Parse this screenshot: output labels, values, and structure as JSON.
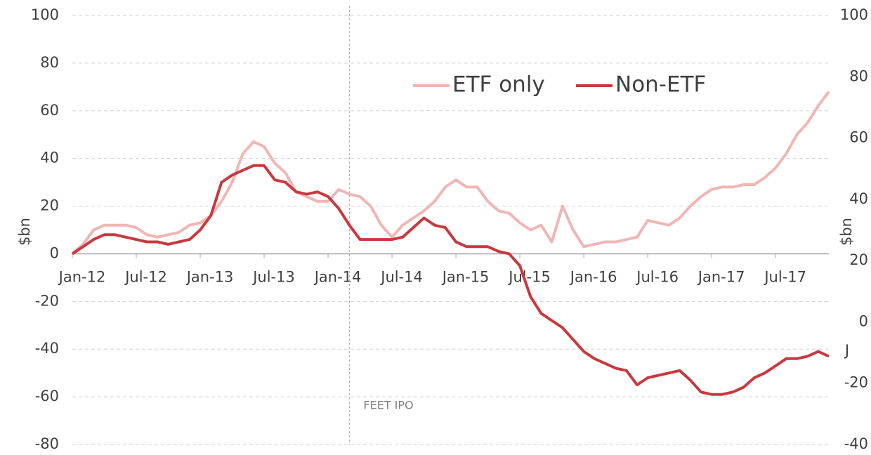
{
  "chart_data": {
    "type": "line",
    "categories": [
      "Jan-12",
      null,
      null,
      null,
      null,
      null,
      "Jul-12",
      null,
      null,
      null,
      null,
      null,
      "Jan-13",
      null,
      null,
      null,
      null,
      null,
      "Jul-13",
      null,
      null,
      null,
      null,
      null,
      "Jan-14",
      null,
      null,
      null,
      null,
      null,
      "Jul-14",
      null,
      null,
      null,
      null,
      null,
      "Jan-15",
      null,
      null,
      null,
      null,
      null,
      "Jul-15",
      null,
      null,
      null,
      null,
      null,
      "Jan-16",
      null,
      null,
      null,
      null,
      null,
      "Jul-16",
      null,
      null,
      null,
      null,
      null,
      "Jan-17",
      null,
      null,
      null,
      null,
      null,
      "Jul-17",
      null,
      null,
      null,
      null,
      null
    ],
    "series": [
      {
        "name": "ETF only",
        "color": "#f0b6b4",
        "values": [
          0,
          4,
          10,
          12,
          12,
          12,
          11,
          8,
          7,
          8,
          9,
          12,
          13,
          16,
          22,
          30,
          42,
          47,
          45,
          38,
          34,
          26,
          24,
          22,
          22,
          27,
          25,
          24,
          20,
          12,
          7,
          12,
          15,
          18,
          22,
          28,
          31,
          28,
          28,
          22,
          18,
          17,
          13,
          10,
          12,
          5,
          20,
          10,
          3,
          4,
          5,
          5,
          6,
          7,
          14,
          13,
          12,
          15,
          20,
          24,
          27,
          28,
          28,
          29,
          29,
          32,
          36,
          42,
          50,
          55,
          62,
          68
        ]
      },
      {
        "name": "Non-ETF",
        "color": "#c8393f",
        "values": [
          0,
          3,
          6,
          8,
          8,
          7,
          6,
          5,
          5,
          4,
          5,
          6,
          10,
          16,
          30,
          33,
          35,
          37,
          37,
          31,
          30,
          26,
          25,
          26,
          24,
          19,
          12,
          6,
          6,
          6,
          6,
          7,
          11,
          15,
          12,
          11,
          5,
          3,
          3,
          3,
          1,
          0,
          -5,
          -18,
          -25,
          -28,
          -31,
          -36,
          -41,
          -44,
          -46,
          -48,
          -49,
          -55,
          -52,
          -51,
          -50,
          -49,
          -53,
          -58,
          -59,
          -59,
          -58,
          -56,
          -52,
          -50,
          -47,
          -44,
          -44,
          -43,
          -41,
          -43
        ]
      }
    ],
    "ylim": [
      -80,
      100
    ],
    "yticks": [
      -80,
      -60,
      -40,
      -20,
      0,
      20,
      40,
      60,
      80,
      100
    ],
    "y2lim": [
      -40,
      100
    ],
    "y2ticks": [
      -40,
      -20,
      0,
      20,
      40,
      60,
      80,
      100
    ],
    "ylabel": "$bn",
    "y2label": "$bn",
    "grid": true,
    "legend": "top",
    "event": {
      "label": "FEET IPO",
      "x": 26
    },
    "annotations": [
      "J"
    ]
  }
}
